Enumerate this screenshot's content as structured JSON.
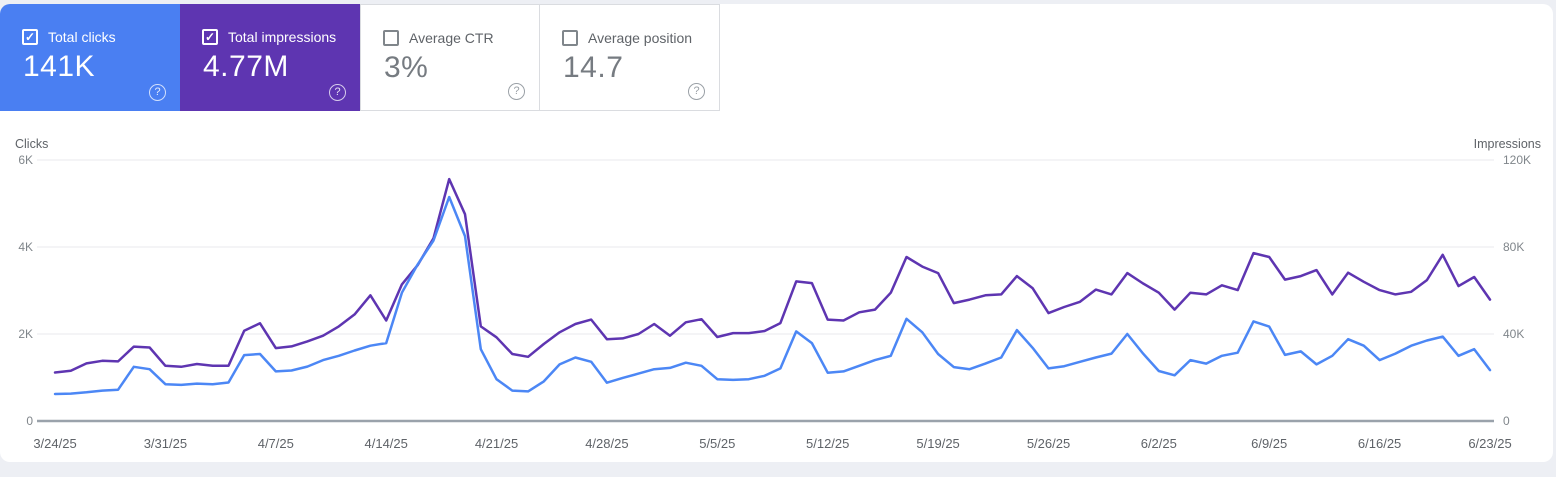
{
  "icons": {
    "check": "✓",
    "help": "?"
  },
  "cards": [
    {
      "id": "total-clicks",
      "label": "Total clicks",
      "value": "141K",
      "selected": true,
      "checked": true,
      "color": "#4a7ff2"
    },
    {
      "id": "total-impressions",
      "label": "Total impressions",
      "value": "4.77M",
      "selected": true,
      "checked": true,
      "color": "#5e35b1"
    },
    {
      "id": "average-ctr",
      "label": "Average CTR",
      "value": "3%",
      "selected": false,
      "checked": false,
      "color": "#ffffff"
    },
    {
      "id": "average-position",
      "label": "Average position",
      "value": "14.7",
      "selected": false,
      "checked": false,
      "color": "#ffffff"
    }
  ],
  "chart_data": {
    "type": "line",
    "grid": "horizontal",
    "x_tick_labels": [
      "3/24/25",
      "3/31/25",
      "4/7/25",
      "4/14/25",
      "4/21/25",
      "4/28/25",
      "5/5/25",
      "5/12/25",
      "5/19/25",
      "5/26/25",
      "6/2/25",
      "6/9/25",
      "6/16/25",
      "6/23/25"
    ],
    "x_tick_interval_days": 7,
    "y_left": {
      "title": "Clicks",
      "ticks": [
        "0",
        "2K",
        "4K",
        "6K"
      ],
      "range": [
        0,
        6000
      ]
    },
    "y_right": {
      "title": "Impressions",
      "ticks": [
        "0",
        "40K",
        "80K",
        "120K"
      ],
      "range": [
        0,
        120000
      ]
    },
    "series": [
      {
        "name": "Total clicks",
        "axis": "left",
        "color": "#4c87f5",
        "values": [
          620,
          630,
          660,
          700,
          720,
          1245,
          1190,
          845,
          830,
          860,
          845,
          885,
          1515,
          1540,
          1140,
          1160,
          1250,
          1400,
          1500,
          1620,
          1730,
          1790,
          2950,
          3600,
          4150,
          5150,
          4250,
          1650,
          960,
          700,
          680,
          910,
          1300,
          1460,
          1360,
          880,
          990,
          1090,
          1190,
          1220,
          1340,
          1270,
          960,
          945,
          960,
          1040,
          1210,
          2060,
          1790,
          1110,
          1140,
          1270,
          1400,
          1500,
          2350,
          2040,
          1540,
          1240,
          1190,
          1320,
          1460,
          2090,
          1680,
          1210,
          1260,
          1360,
          1460,
          1550,
          2000,
          1550,
          1150,
          1050,
          1400,
          1320,
          1500,
          1570,
          2290,
          2170,
          1520,
          1600,
          1300,
          1500,
          1880,
          1730,
          1400,
          1550,
          1730,
          1850,
          1940,
          1500,
          1650,
          1170
        ]
      },
      {
        "name": "Total impressions",
        "axis": "right",
        "color": "#5e35b1",
        "values": [
          22300,
          23100,
          26500,
          27700,
          27400,
          34200,
          33800,
          25400,
          24900,
          26200,
          25400,
          25400,
          41500,
          44900,
          33500,
          34300,
          36600,
          39200,
          43500,
          49000,
          57800,
          46200,
          62800,
          71700,
          84000,
          111200,
          95100,
          43500,
          38500,
          30800,
          29500,
          35400,
          40800,
          44600,
          46600,
          37600,
          38000,
          40000,
          44600,
          39200,
          45400,
          46800,
          38600,
          40400,
          40400,
          41400,
          45000,
          64200,
          63400,
          46600,
          46200,
          50000,
          51200,
          59000,
          75400,
          71000,
          68000,
          54200,
          55800,
          57800,
          58200,
          66600,
          61000,
          49600,
          52400,
          54800,
          60400,
          58200,
          68000,
          63200,
          59000,
          51200,
          59000,
          58200,
          62400,
          60200,
          77200,
          75400,
          65000,
          66600,
          69400,
          58200,
          68200,
          64000,
          60200,
          58200,
          59400,
          64800,
          76400,
          62000,
          66200,
          55800
        ]
      }
    ]
  }
}
